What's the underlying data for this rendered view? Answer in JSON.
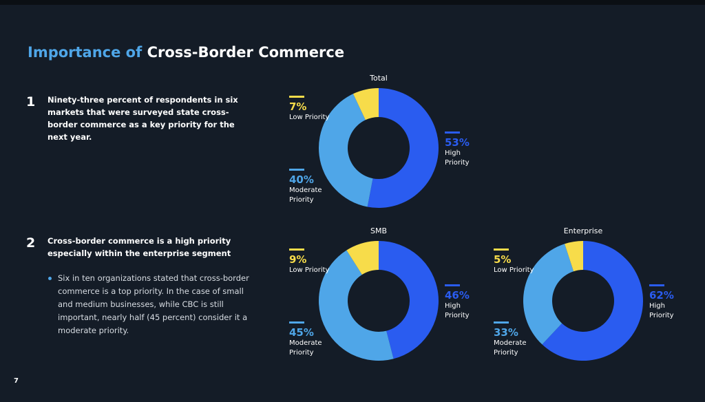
{
  "slide": {
    "title_lead": "Importance of",
    "title_main": "Cross-Border Commerce",
    "points": [
      {
        "number": "1",
        "text": "Ninety-three percent of respondents in six markets that were surveyed state cross-border commerce as a key priority for the next year."
      },
      {
        "number": "2",
        "text": "Cross-border commerce is a high priority especially within the enterprise segment",
        "bullets": [
          "Six in ten organizations stated that cross-border commerce is a top priority. In the case of small and medium businesses, while CBC is still important, nearly half (45 percent) consider it a moderate priority."
        ]
      }
    ],
    "page_number": "7"
  },
  "chart_data": [
    {
      "type": "pie",
      "donut": true,
      "title": "Total",
      "categories": [
        "High Priority",
        "Moderate Priority",
        "Low Priority"
      ],
      "values": [
        53,
        40,
        7
      ],
      "value_labels": [
        "53%",
        "40%",
        "7%"
      ],
      "colors": [
        "#2a5cf0",
        "#4fa6e8",
        "#f7dc4a"
      ]
    },
    {
      "type": "pie",
      "donut": true,
      "title": "SMB",
      "categories": [
        "High Priority",
        "Moderate Priority",
        "Low Priority"
      ],
      "values": [
        46,
        45,
        9
      ],
      "value_labels": [
        "46%",
        "45%",
        "9%"
      ],
      "colors": [
        "#2a5cf0",
        "#4fa6e8",
        "#f7dc4a"
      ]
    },
    {
      "type": "pie",
      "donut": true,
      "title": "Enterprise",
      "categories": [
        "High Priority",
        "Moderate Priority",
        "Low Priority"
      ],
      "values": [
        62,
        33,
        5
      ],
      "value_labels": [
        "62%",
        "33%",
        "5%"
      ],
      "colors": [
        "#2a5cf0",
        "#4fa6e8",
        "#f7dc4a"
      ]
    }
  ]
}
